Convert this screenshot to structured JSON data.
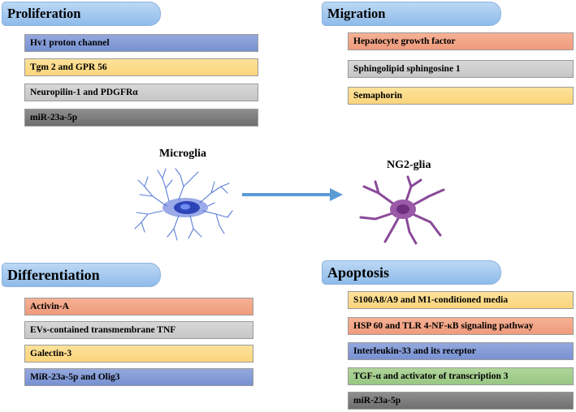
{
  "proliferation": {
    "title": "Proliferation",
    "items": [
      "Hv1 proton channel",
      "Tgm 2 and GPR 56",
      "Neuropilin-1 and PDGFRα",
      "miR-23a-5p"
    ]
  },
  "migration": {
    "title": "Migration",
    "items": [
      "Hepatocyte growth factor",
      "Sphingolipid sphingosine 1",
      "Semaphorin"
    ]
  },
  "differentiation": {
    "title": "Differentiation",
    "items": [
      "Activin-A",
      "EVs-contained transmembrane TNF",
      "Galectin-3",
      "MiR-23a-5p and Olig3"
    ]
  },
  "apoptosis": {
    "title": "Apoptosis",
    "items": [
      "S100A8/A9 and M1-conditioned media",
      "HSP 60 and TLR 4-NF-κB signaling pathway",
      "Interleukin-33 and its receptor",
      "TGF-α and activator of transcription 3",
      "miR-23a-5p"
    ]
  },
  "cells": {
    "microglia": "Microglia",
    "ng2_glia": "NG2-glia"
  },
  "colors": {
    "header": "#a6c8ee",
    "blue": "#8199d6",
    "yellow": "#fcda86",
    "gray": "#cfcfcf",
    "dark_gray": "#7f7f7f",
    "orange": "#f2a486",
    "green": "#a4cd8e",
    "arrow": "#5b9bd5",
    "microglia": "#3a56c9",
    "ng2_glia": "#8a4a98"
  }
}
